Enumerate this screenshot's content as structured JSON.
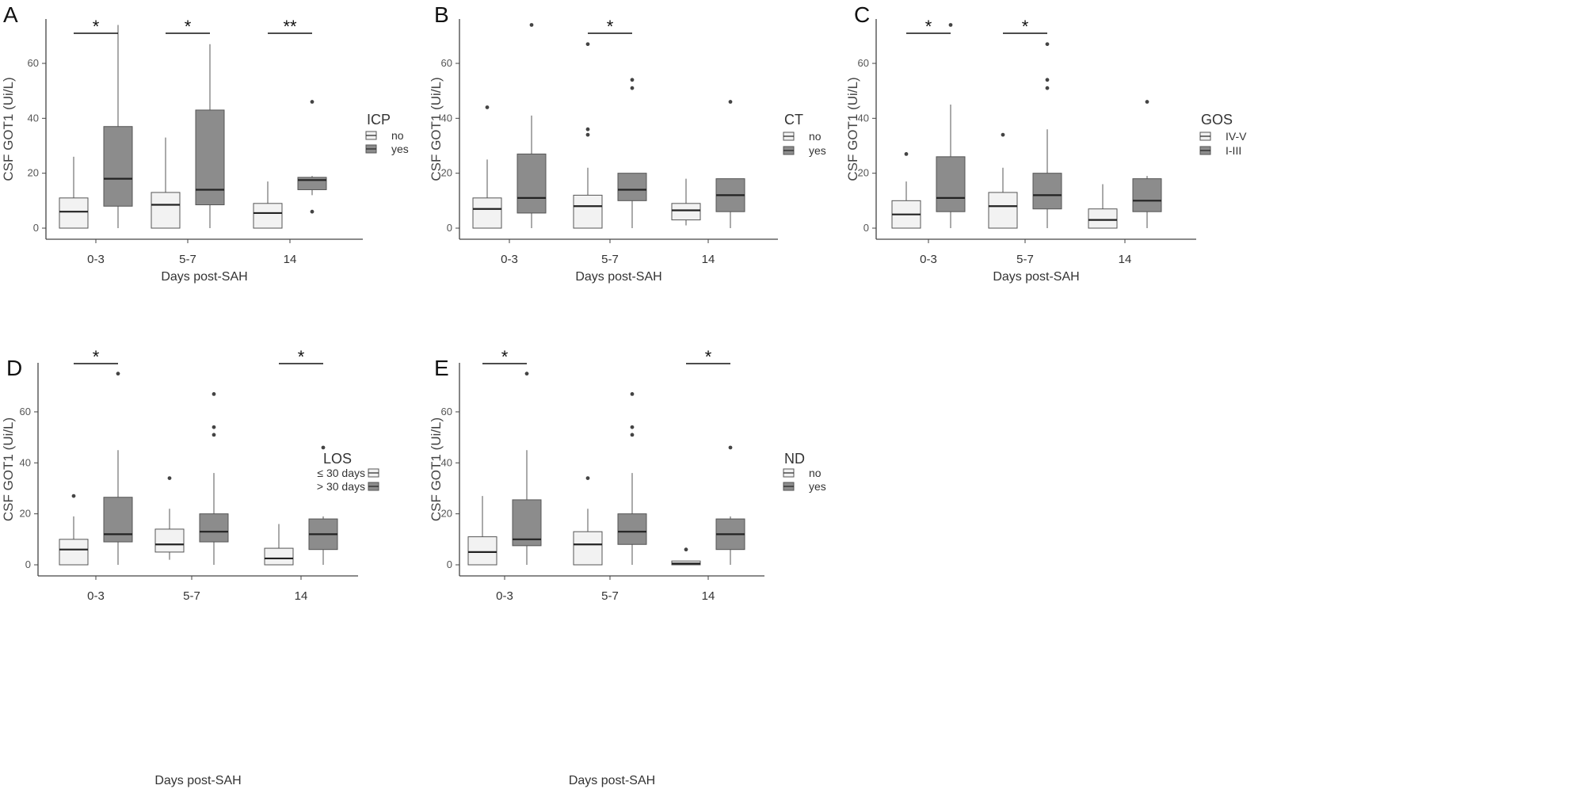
{
  "chart_data": [
    {
      "panel": "A",
      "type": "box",
      "xlabel": "Days post-SAH",
      "ylabel": "CSF GOT1 (Ui/L)",
      "categories": [
        "0-3",
        "5-7",
        "14"
      ],
      "ylim": [
        0,
        75
      ],
      "yticks": [
        0,
        20,
        40,
        60
      ],
      "legend": {
        "title": "ICP",
        "position": "right",
        "labels": [
          "no",
          "yes"
        ]
      },
      "series": [
        {
          "name": "no",
          "boxes": [
            {
              "min": 0,
              "q1": 0,
              "median": 6,
              "q3": 11,
              "max": 26,
              "outliers": []
            },
            {
              "min": 0,
              "q1": 0,
              "median": 8.5,
              "q3": 13,
              "max": 33,
              "outliers": []
            },
            {
              "min": 0,
              "q1": 0,
              "median": 5.5,
              "q3": 9,
              "max": 17,
              "outliers": []
            }
          ]
        },
        {
          "name": "yes",
          "boxes": [
            {
              "min": 0,
              "q1": 8,
              "median": 18,
              "q3": 37,
              "max": 74,
              "outliers": []
            },
            {
              "min": 0,
              "q1": 8.5,
              "median": 14,
              "q3": 43,
              "max": 67,
              "outliers": []
            },
            {
              "min": 12,
              "q1": 14,
              "median": 17.5,
              "q3": 18.5,
              "max": 19,
              "outliers": [
                46,
                6
              ]
            }
          ]
        }
      ],
      "significance": [
        {
          "category": "0-3",
          "label": "*"
        },
        {
          "category": "5-7",
          "label": "*"
        },
        {
          "category": "14",
          "label": "**"
        }
      ]
    },
    {
      "panel": "B",
      "type": "box",
      "xlabel": "Days post-SAH",
      "ylabel": "CSF GOT1 (Ui/L)",
      "categories": [
        "0-3",
        "5-7",
        "14"
      ],
      "ylim": [
        0,
        75
      ],
      "yticks": [
        0,
        20,
        40,
        60
      ],
      "legend": {
        "title": "CT",
        "position": "right",
        "labels": [
          "no",
          "yes"
        ]
      },
      "series": [
        {
          "name": "no",
          "boxes": [
            {
              "min": 0,
              "q1": 0,
              "median": 7,
              "q3": 11,
              "max": 25,
              "outliers": [
                44
              ]
            },
            {
              "min": 0,
              "q1": 0,
              "median": 8,
              "q3": 12,
              "max": 22,
              "outliers": [
                36,
                34,
                67
              ]
            },
            {
              "min": 1,
              "q1": 3,
              "median": 6.5,
              "q3": 9,
              "max": 18,
              "outliers": []
            }
          ]
        },
        {
          "name": "yes",
          "boxes": [
            {
              "min": 0,
              "q1": 5.5,
              "median": 11,
              "q3": 27,
              "max": 41,
              "outliers": [
                74
              ]
            },
            {
              "min": 0,
              "q1": 10,
              "median": 14,
              "q3": 20,
              "max": 20,
              "outliers": [
                51,
                54
              ]
            },
            {
              "min": 0,
              "q1": 6,
              "median": 12,
              "q3": 18,
              "max": 18,
              "outliers": [
                46
              ]
            }
          ]
        }
      ],
      "significance": [
        {
          "category": "5-7",
          "label": "*"
        }
      ]
    },
    {
      "panel": "C",
      "type": "box",
      "xlabel": "Days post-SAH",
      "ylabel": "CSF GOT1 (Ui/L)",
      "categories": [
        "0-3",
        "5-7",
        "14"
      ],
      "ylim": [
        0,
        75
      ],
      "yticks": [
        0,
        20,
        40,
        60
      ],
      "legend": {
        "title": "GOS",
        "position": "right",
        "labels": [
          "IV-V",
          "I-III"
        ]
      },
      "series": [
        {
          "name": "IV-V",
          "boxes": [
            {
              "min": 0,
              "q1": 0,
              "median": 5,
              "q3": 10,
              "max": 17,
              "outliers": [
                27
              ]
            },
            {
              "min": 0,
              "q1": 0,
              "median": 8,
              "q3": 13,
              "max": 22,
              "outliers": [
                34
              ]
            },
            {
              "min": 0,
              "q1": 0,
              "median": 3,
              "q3": 7,
              "max": 16,
              "outliers": []
            }
          ]
        },
        {
          "name": "I-III",
          "boxes": [
            {
              "min": 0,
              "q1": 6,
              "median": 11,
              "q3": 26,
              "max": 45,
              "outliers": [
                74
              ]
            },
            {
              "min": 0,
              "q1": 7,
              "median": 12,
              "q3": 20,
              "max": 36,
              "outliers": [
                51,
                54,
                67
              ]
            },
            {
              "min": 0,
              "q1": 6,
              "median": 10,
              "q3": 18,
              "max": 19,
              "outliers": [
                46
              ]
            }
          ]
        }
      ],
      "significance": [
        {
          "category": "0-3",
          "label": "*"
        },
        {
          "category": "5-7",
          "label": "*"
        }
      ]
    },
    {
      "panel": "D",
      "type": "box",
      "xlabel": "Days post-SAH",
      "ylabel": "CSF GOT1 (Ui/L)",
      "categories": [
        "0-3",
        "5-7",
        "14"
      ],
      "ylim": [
        0,
        78
      ],
      "yticks": [
        0,
        20,
        40,
        60
      ],
      "legend": {
        "title": "LOS",
        "position": "right",
        "labels": [
          "≤ 30 days",
          "> 30 days"
        ]
      },
      "series": [
        {
          "name": "≤ 30 days",
          "boxes": [
            {
              "min": 0,
              "q1": 0,
              "median": 6,
              "q3": 10,
              "max": 19,
              "outliers": [
                27
              ]
            },
            {
              "min": 2,
              "q1": 5,
              "median": 8,
              "q3": 14,
              "max": 22,
              "outliers": [
                34
              ]
            },
            {
              "min": 0,
              "q1": 0,
              "median": 2.5,
              "q3": 6.5,
              "max": 16,
              "outliers": []
            }
          ]
        },
        {
          "name": "> 30 days",
          "boxes": [
            {
              "min": 0,
              "q1": 9,
              "median": 12,
              "q3": 26.5,
              "max": 45,
              "outliers": [
                75
              ]
            },
            {
              "min": 0,
              "q1": 9,
              "median": 13,
              "q3": 20,
              "max": 36,
              "outliers": [
                51,
                54,
                67
              ]
            },
            {
              "min": 0,
              "q1": 6,
              "median": 12,
              "q3": 18,
              "max": 19,
              "outliers": [
                46
              ]
            }
          ]
        }
      ],
      "significance": [
        {
          "category": "0-3",
          "label": "*"
        },
        {
          "category": "14",
          "label": "*"
        }
      ]
    },
    {
      "panel": "E",
      "type": "box",
      "xlabel": "Days post-SAH",
      "ylabel": "CSF GOT1 (Ui/L)",
      "categories": [
        "0-3",
        "5-7",
        "14"
      ],
      "ylim": [
        0,
        78
      ],
      "yticks": [
        0,
        20,
        40,
        60
      ],
      "legend": {
        "title": "ND",
        "position": "right",
        "labels": [
          "no",
          "yes"
        ]
      },
      "series": [
        {
          "name": "no",
          "boxes": [
            {
              "min": 0,
              "q1": 0,
              "median": 5,
              "q3": 11,
              "max": 27,
              "outliers": []
            },
            {
              "min": 0,
              "q1": 0,
              "median": 8,
              "q3": 13,
              "max": 22,
              "outliers": [
                34
              ]
            },
            {
              "min": 0,
              "q1": 0,
              "median": 0.5,
              "q3": 1.5,
              "max": 1.5,
              "outliers": [
                6
              ]
            }
          ]
        },
        {
          "name": "yes",
          "boxes": [
            {
              "min": 0,
              "q1": 7.5,
              "median": 10,
              "q3": 25.5,
              "max": 45,
              "outliers": [
                75
              ]
            },
            {
              "min": 0,
              "q1": 8,
              "median": 13,
              "q3": 20,
              "max": 36,
              "outliers": [
                51,
                54,
                67
              ]
            },
            {
              "min": 0,
              "q1": 6,
              "median": 12,
              "q3": 18,
              "max": 19,
              "outliers": [
                46
              ]
            }
          ]
        }
      ],
      "significance": [
        {
          "category": "0-3",
          "label": "*"
        },
        {
          "category": "14",
          "label": "*"
        }
      ]
    }
  ],
  "colors": {
    "no_fill": "#f2f2f2",
    "yes_fill": "#8c8c8c",
    "stroke": "#555555",
    "median": "#222222",
    "axis": "#444444"
  }
}
